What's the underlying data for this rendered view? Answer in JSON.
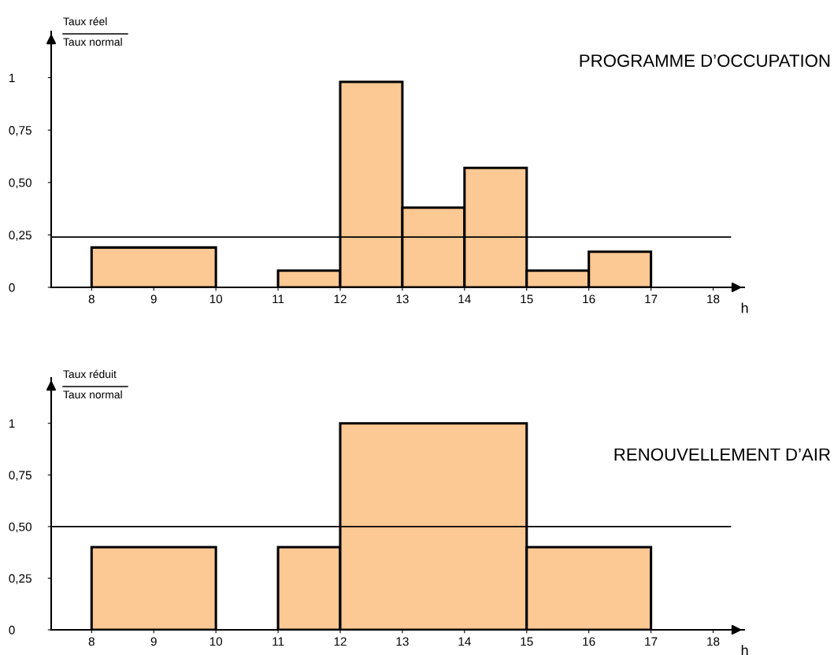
{
  "chart_data": [
    {
      "type": "histogram",
      "title": "PROGRAMME D’OCCUPATION",
      "ylabel": "Taux réel\nTaux normal",
      "xlabel": "h",
      "bins": [
        8,
        10,
        11,
        12,
        13,
        14,
        15,
        16,
        17
      ],
      "values": [
        0.19,
        null,
        0.08,
        0.98,
        0.38,
        0.57,
        0.08,
        0.17
      ],
      "color": "#fcc893",
      "xlim": [
        7.35,
        18.5
      ],
      "xticks": [
        8,
        9,
        10,
        11,
        12,
        13,
        14,
        15,
        16,
        17,
        18
      ],
      "ylim": [
        0,
        1.22
      ],
      "yticks": [
        0,
        {
          "value": 0.25,
          "label": "0,25"
        },
        {
          "value": 0.5,
          "label": "0,50"
        },
        {
          "value": 0.75,
          "label": "0,75"
        },
        1
      ],
      "ref_lines": [
        {
          "axis": "y",
          "value": 0.24,
          "color": "#000000"
        }
      ],
      "grid": false,
      "legend": false
    },
    {
      "type": "histogram",
      "title": "RENOUVELLEMENT D’AIR",
      "ylabel": "Taux réduit\nTaux normal",
      "xlabel": "h",
      "bins": [
        8,
        10,
        11,
        12,
        15,
        17
      ],
      "values": [
        0.4,
        null,
        0.4,
        1,
        0.4
      ],
      "color": "#fcc893",
      "xlim": [
        7.35,
        18.5
      ],
      "xticks": [
        8,
        9,
        10,
        11,
        12,
        13,
        14,
        15,
        16,
        17,
        18
      ],
      "ylim": [
        0,
        1.22
      ],
      "yticks": [
        0,
        {
          "value": 0.25,
          "label": "0,25"
        },
        {
          "value": 0.5,
          "label": "0,50"
        },
        {
          "value": 0.75,
          "label": "0,75"
        },
        1
      ],
      "ref_lines": [
        {
          "axis": "y",
          "value": 0.5,
          "color": "#000000"
        }
      ],
      "grid": false,
      "legend": false
    }
  ]
}
